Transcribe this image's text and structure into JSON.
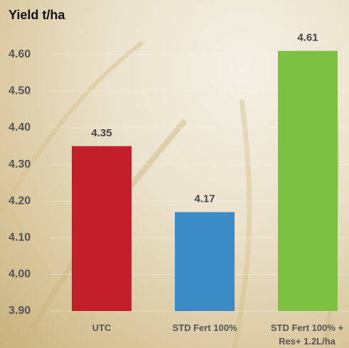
{
  "chart_data": {
    "type": "bar",
    "title": "Yield t/ha",
    "categories": [
      "UTC",
      "STD Fert 100%",
      "STD Fert 100% + Res+ 1.2L/ha"
    ],
    "values": [
      4.35,
      4.17,
      4.61
    ],
    "colors": [
      "#c21f2a",
      "#3b8bc7",
      "#7cc142"
    ],
    "ylim": [
      3.9,
      4.65
    ],
    "yticks": [
      {
        "value": 3.9,
        "label": "3.90"
      },
      {
        "value": 4.0,
        "label": "4.00"
      },
      {
        "value": 4.1,
        "label": "4.10"
      },
      {
        "value": 4.2,
        "label": "4.20"
      },
      {
        "value": 4.3,
        "label": "4.30"
      },
      {
        "value": 4.4,
        "label": "4.40"
      },
      {
        "value": 4.5,
        "label": "4.50"
      },
      {
        "value": 4.6,
        "label": "4.60"
      }
    ]
  }
}
